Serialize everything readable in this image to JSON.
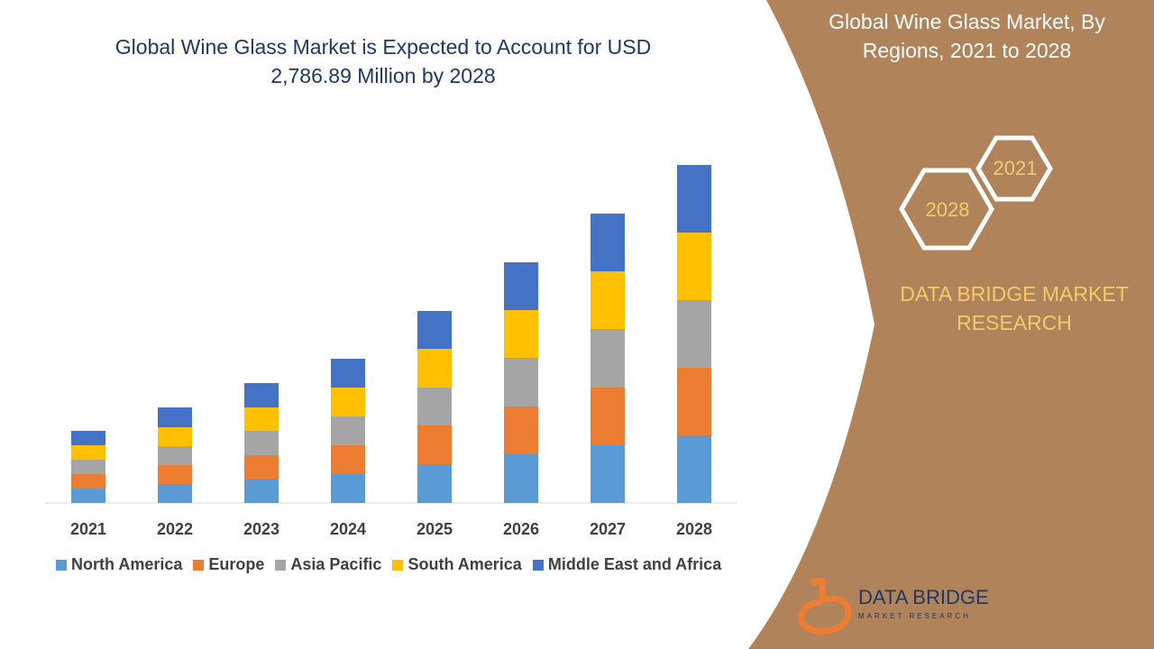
{
  "chart_data": {
    "type": "stacked-bar",
    "title": "Global Wine Glass Market is Expected to Account for USD 2,786.89 Million by 2028",
    "categories": [
      "2021",
      "2022",
      "2023",
      "2024",
      "2025",
      "2026",
      "2027",
      "2028"
    ],
    "series": [
      {
        "name": "North America",
        "color": "#5b9bd5",
        "values": [
          16,
          21,
          27,
          32,
          43,
          54,
          64,
          75
        ]
      },
      {
        "name": "Europe",
        "color": "#ed7d31",
        "values": [
          16,
          21,
          26,
          32,
          43,
          53,
          64,
          75
        ]
      },
      {
        "name": "Asia Pacific",
        "color": "#a5a5a5",
        "values": [
          16,
          21,
          27,
          32,
          42,
          54,
          65,
          75
        ]
      },
      {
        "name": "South America",
        "color": "#ffc000",
        "values": [
          16,
          21,
          26,
          32,
          43,
          53,
          64,
          75
        ]
      },
      {
        "name": "Middle East and Africa",
        "color": "#4472c4",
        "values": [
          16,
          22,
          27,
          32,
          42,
          53,
          64,
          75
        ]
      }
    ]
  },
  "panel": {
    "heading": "Global Wine Glass Market, By Regions, 2021 to 2028",
    "hexagons": [
      "2021",
      "2028"
    ],
    "brand": "DATA BRIDGE MARKET RESEARCH",
    "logo": {
      "name": "DATA BRIDGE",
      "tagline": "MARKET RESEARCH"
    }
  }
}
